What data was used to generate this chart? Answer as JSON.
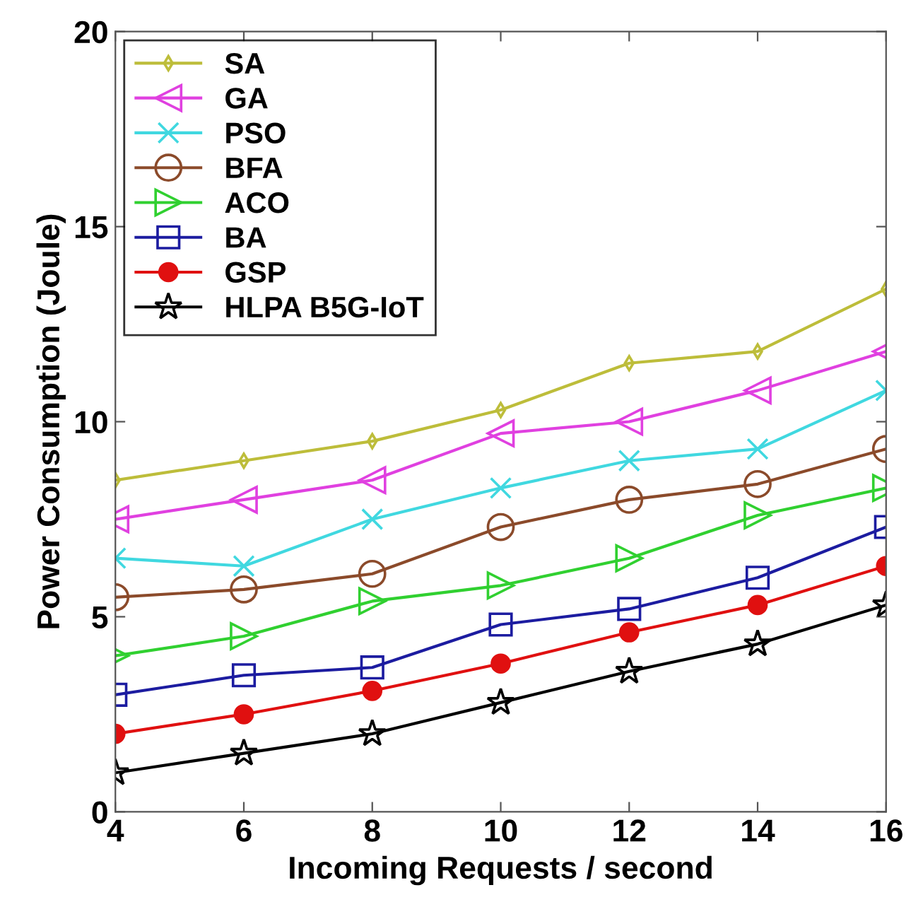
{
  "chart_data": {
    "type": "line",
    "xlabel": "Incoming Requests / second",
    "ylabel": "Power Consumption (Joule)",
    "x": [
      4,
      6,
      8,
      10,
      12,
      14,
      16
    ],
    "xlim": [
      4,
      16
    ],
    "xticks": [
      4,
      6,
      8,
      10,
      12,
      14,
      16
    ],
    "ylim": [
      0,
      20
    ],
    "yticks": [
      0,
      5,
      10,
      15,
      20
    ],
    "grid": false,
    "legend": "top left",
    "line_style": "solid",
    "series": [
      {
        "name": "SA",
        "color": "#bdbd3a",
        "marker": "diamond",
        "values": [
          8.5,
          9.0,
          9.5,
          10.3,
          11.5,
          11.8,
          13.4
        ]
      },
      {
        "name": "GA",
        "color": "#e040e0",
        "marker": "triangle_left",
        "values": [
          7.5,
          8.0,
          8.5,
          9.7,
          10.0,
          10.8,
          11.8
        ]
      },
      {
        "name": "PSO",
        "color": "#40d8e0",
        "marker": "cross",
        "values": [
          6.5,
          6.3,
          7.5,
          8.3,
          9.0,
          9.3,
          10.8
        ]
      },
      {
        "name": "BFA",
        "color": "#8b4a2a",
        "marker": "circle",
        "values": [
          5.5,
          5.7,
          6.1,
          7.3,
          8.0,
          8.4,
          9.3
        ]
      },
      {
        "name": "ACO",
        "color": "#30d030",
        "marker": "triangle_right",
        "values": [
          4.0,
          4.5,
          5.4,
          5.8,
          6.5,
          7.6,
          8.3
        ]
      },
      {
        "name": "BA",
        "color": "#1c1ca0",
        "marker": "square",
        "values": [
          3.0,
          3.5,
          3.7,
          4.8,
          5.2,
          6.0,
          7.3
        ]
      },
      {
        "name": "GSP",
        "color": "#e01010",
        "marker": "filled_circle",
        "values": [
          2.0,
          2.5,
          3.1,
          3.8,
          4.6,
          5.3,
          6.3
        ]
      },
      {
        "name": "HLPA B5G-IoT",
        "color": "#000000",
        "marker": "star",
        "values": [
          1.0,
          1.5,
          2.0,
          2.8,
          3.6,
          4.3,
          5.3
        ]
      }
    ]
  }
}
